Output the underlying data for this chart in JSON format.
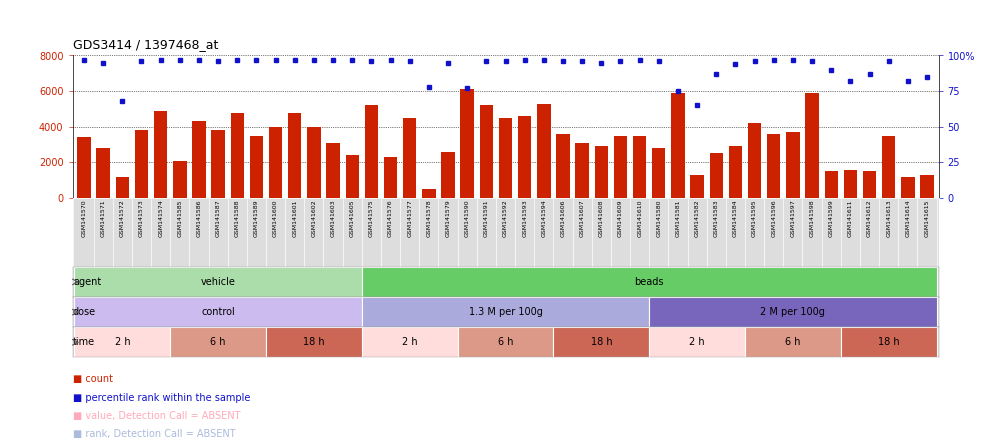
{
  "title": "GDS3414 / 1397468_at",
  "samples": [
    "GSM141570",
    "GSM141571",
    "GSM141572",
    "GSM141573",
    "GSM141574",
    "GSM141585",
    "GSM141586",
    "GSM141587",
    "GSM141588",
    "GSM141589",
    "GSM141600",
    "GSM141601",
    "GSM141602",
    "GSM141603",
    "GSM141605",
    "GSM141575",
    "GSM141576",
    "GSM141577",
    "GSM141578",
    "GSM141579",
    "GSM141590",
    "GSM141591",
    "GSM141592",
    "GSM141593",
    "GSM141594",
    "GSM141606",
    "GSM141607",
    "GSM141608",
    "GSM141609",
    "GSM141610",
    "GSM141580",
    "GSM141581",
    "GSM141582",
    "GSM141583",
    "GSM141584",
    "GSM141595",
    "GSM141596",
    "GSM141597",
    "GSM141598",
    "GSM141599",
    "GSM141611",
    "GSM141612",
    "GSM141613",
    "GSM141614",
    "GSM141615"
  ],
  "counts": [
    3400,
    2800,
    1200,
    3800,
    4900,
    2100,
    4300,
    3800,
    4800,
    3500,
    4000,
    4800,
    4000,
    3100,
    2400,
    5200,
    2300,
    4500,
    500,
    2600,
    6100,
    5200,
    4500,
    4600,
    5300,
    3600,
    3100,
    2900,
    3500,
    3500,
    2800,
    5900,
    1300,
    2500,
    2900,
    4200,
    3600,
    3700,
    5900,
    1500,
    1600,
    1500,
    3500,
    1200,
    1300
  ],
  "percentile_ranks": [
    97,
    95,
    68,
    96,
    97,
    97,
    97,
    96,
    97,
    97,
    97,
    97,
    97,
    97,
    97,
    96,
    97,
    96,
    78,
    95,
    77,
    96,
    96,
    97,
    97,
    96,
    96,
    95,
    96,
    97,
    96,
    75,
    65,
    87,
    94,
    96,
    97,
    97,
    96,
    90,
    82,
    87,
    96,
    82,
    85
  ],
  "bar_color": "#cc2200",
  "dot_color": "#1111cc",
  "absent_dot_color": "#aabbdd",
  "ylim_left": [
    0,
    8000
  ],
  "ylim_right": [
    0,
    100
  ],
  "yticks_left": [
    0,
    2000,
    4000,
    6000,
    8000
  ],
  "yticks_right_vals": [
    0,
    25,
    50,
    75,
    100
  ],
  "yticks_right_labels": [
    "0",
    "25",
    "50",
    "75",
    "100%"
  ],
  "agent_groups": [
    {
      "label": "vehicle",
      "start": 0,
      "end": 14,
      "color": "#aaddaa"
    },
    {
      "label": "beads",
      "start": 15,
      "end": 44,
      "color": "#66cc66"
    }
  ],
  "dose_groups": [
    {
      "label": "control",
      "start": 0,
      "end": 14,
      "color": "#ccbbee"
    },
    {
      "label": "1.3 M per 100g",
      "start": 15,
      "end": 29,
      "color": "#aaaadd"
    },
    {
      "label": "2 M per 100g",
      "start": 30,
      "end": 44,
      "color": "#7766bb"
    }
  ],
  "time_groups": [
    {
      "label": "2 h",
      "start": 0,
      "end": 4,
      "color": "#ffdddd"
    },
    {
      "label": "6 h",
      "start": 5,
      "end": 9,
      "color": "#dd9988"
    },
    {
      "label": "18 h",
      "start": 10,
      "end": 14,
      "color": "#cc6655"
    },
    {
      "label": "2 h",
      "start": 15,
      "end": 19,
      "color": "#ffdddd"
    },
    {
      "label": "6 h",
      "start": 20,
      "end": 24,
      "color": "#dd9988"
    },
    {
      "label": "18 h",
      "start": 25,
      "end": 29,
      "color": "#cc6655"
    },
    {
      "label": "2 h",
      "start": 30,
      "end": 34,
      "color": "#ffdddd"
    },
    {
      "label": "6 h",
      "start": 35,
      "end": 39,
      "color": "#dd9988"
    },
    {
      "label": "18 h",
      "start": 40,
      "end": 44,
      "color": "#cc6655"
    }
  ],
  "legend_items": [
    {
      "label": "count",
      "color": "#cc2200"
    },
    {
      "label": "percentile rank within the sample",
      "color": "#1111cc"
    },
    {
      "label": "value, Detection Call = ABSENT",
      "color": "#ffaabb"
    },
    {
      "label": "rank, Detection Call = ABSENT",
      "color": "#aabbdd"
    }
  ],
  "xlabel_bg": "#dddddd",
  "chart_bg": "#ffffff",
  "ann_label_fontsize": 7,
  "tick_fontsize": 7,
  "bar_fontsize": 4.5,
  "title_fontsize": 9
}
